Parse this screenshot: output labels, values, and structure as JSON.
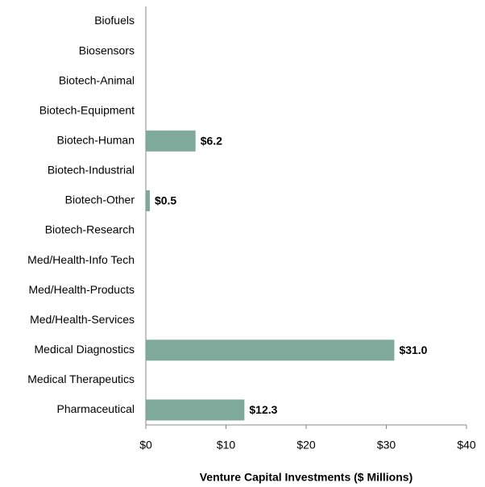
{
  "chart_data": {
    "type": "bar",
    "orientation": "horizontal",
    "categories": [
      "Biofuels",
      "Biosensors",
      "Biotech-Animal",
      "Biotech-Equipment",
      "Biotech-Human",
      "Biotech-Industrial",
      "Biotech-Other",
      "Biotech-Research",
      "Med/Health-Info Tech",
      "Med/Health-Products",
      "Med/Health-Services",
      "Medical Diagnostics",
      "Medical Therapeutics",
      "Pharmaceutical"
    ],
    "values": [
      0,
      0,
      0,
      0,
      6.2,
      0,
      0.5,
      0,
      0,
      0,
      0,
      31.0,
      0,
      12.3
    ],
    "value_labels": [
      null,
      null,
      null,
      null,
      "$6.2",
      null,
      "$0.5",
      null,
      null,
      null,
      null,
      "$31.0",
      null,
      "$12.3"
    ],
    "color": "#7faa9b",
    "xlabel": "Venture Capital Investments ($ Millions)",
    "xlim": [
      0,
      40
    ],
    "xticks": [
      {
        "value": 0,
        "label": "$0"
      },
      {
        "value": 10,
        "label": "$10"
      },
      {
        "value": 20,
        "label": "$20"
      },
      {
        "value": 30,
        "label": "$30"
      },
      {
        "value": 40,
        "label": "$40"
      }
    ],
    "grid": false
  }
}
